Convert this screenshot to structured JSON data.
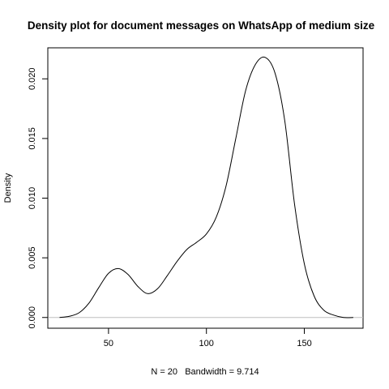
{
  "chart_data": {
    "type": "line",
    "title": "Density plot for document messages on WhatsApp of medium size",
    "xlabel": "N = 20   Bandwidth = 9.714",
    "ylabel": "Density",
    "xlim": [
      19,
      180
    ],
    "ylim": [
      -0.0009,
      0.0226
    ],
    "x_ticks": [
      50,
      100,
      150
    ],
    "y_ticks": [
      0.0,
      0.005,
      0.01,
      0.015,
      0.02
    ],
    "y_tick_labels": [
      "0.000",
      "0.005",
      "0.010",
      "0.015",
      "0.020"
    ],
    "grid": false,
    "baseline": 0,
    "series": [
      {
        "x": [
          25,
          30,
          35,
          40,
          45,
          50,
          55,
          60,
          65,
          70,
          75,
          80,
          85,
          90,
          95,
          100,
          105,
          110,
          115,
          120,
          125,
          130,
          135,
          140,
          145,
          150,
          155,
          160,
          165,
          170,
          175
        ],
        "y": [
          0.0,
          0.0001,
          0.0004,
          0.0012,
          0.0025,
          0.0037,
          0.0041,
          0.0036,
          0.0026,
          0.002,
          0.0024,
          0.0035,
          0.0047,
          0.0057,
          0.0063,
          0.007,
          0.0084,
          0.011,
          0.015,
          0.019,
          0.0212,
          0.0218,
          0.0205,
          0.0165,
          0.0095,
          0.0045,
          0.0018,
          0.0006,
          0.0002,
          0.0,
          0.0
        ]
      }
    ]
  }
}
